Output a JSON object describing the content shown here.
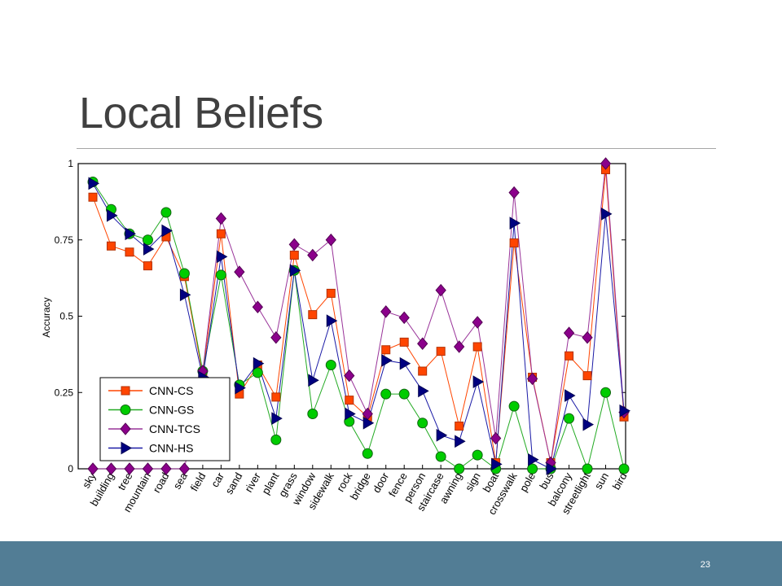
{
  "slide": {
    "title": "Local Beliefs",
    "page_number": "23"
  },
  "chart_data": {
    "type": "line",
    "ylabel": "Accuracy",
    "xlabel": "",
    "ylim": [
      0,
      1
    ],
    "yticks": [
      0,
      0.25,
      0.5,
      0.75,
      1
    ],
    "ytick_labels": [
      "0",
      "0.25",
      "0.5",
      "0.75",
      "1"
    ],
    "legend_position": "bottom-left",
    "grid": false,
    "categories": [
      "sky",
      "building",
      "tree",
      "mountain",
      "road",
      "sea",
      "field",
      "car",
      "sand",
      "river",
      "plant",
      "grass",
      "window",
      "sidewalk",
      "rock",
      "bridge",
      "door",
      "fence",
      "person",
      "staircase",
      "awning",
      "sign",
      "boat",
      "crosswalk",
      "pole",
      "bus",
      "balcony",
      "streetlight",
      "sun",
      "bird"
    ],
    "series": [
      {
        "name": "CNN-CS",
        "color": "#ff4500",
        "fill": "#ff4500",
        "marker": "square",
        "values": [
          0.89,
          0.73,
          0.71,
          0.665,
          0.76,
          0.63,
          0.31,
          0.77,
          0.245,
          0.34,
          0.235,
          0.7,
          0.505,
          0.575,
          0.225,
          0.17,
          0.39,
          0.415,
          0.32,
          0.385,
          0.14,
          0.4,
          0.02,
          0.74,
          0.3,
          0.02,
          0.37,
          0.305,
          0.98,
          0.17
        ]
      },
      {
        "name": "CNN-GS",
        "color": "#22aa22",
        "fill": "#00cc00",
        "marker": "circle",
        "values": [
          0.94,
          0.85,
          0.77,
          0.75,
          0.84,
          0.64,
          0.32,
          0.635,
          0.275,
          0.315,
          0.095,
          0.65,
          0.18,
          0.34,
          0.155,
          0.05,
          0.245,
          0.245,
          0.15,
          0.04,
          0.0,
          0.045,
          0.0,
          0.205,
          0.0,
          0.0,
          0.165,
          0.0,
          0.25,
          0.0
        ]
      },
      {
        "name": "CNN-TCS",
        "color": "#993399",
        "fill": "#8b008b",
        "marker": "diamond",
        "values": [
          0.0,
          0.0,
          0.0,
          0.0,
          0.0,
          0.0,
          0.32,
          0.82,
          0.645,
          0.53,
          0.43,
          0.735,
          0.7,
          0.75,
          0.305,
          0.18,
          0.515,
          0.495,
          0.41,
          0.585,
          0.4,
          0.48,
          0.1,
          0.905,
          0.295,
          0.02,
          0.445,
          0.43,
          1.0,
          0.185
        ]
      },
      {
        "name": "CNN-HS",
        "color": "#1a1aa6",
        "fill": "#000080",
        "marker": "triangle-right",
        "values": [
          0.935,
          0.83,
          0.77,
          0.72,
          0.78,
          0.57,
          0.3,
          0.695,
          0.265,
          0.345,
          0.165,
          0.65,
          0.29,
          0.485,
          0.18,
          0.15,
          0.355,
          0.345,
          0.255,
          0.11,
          0.09,
          0.285,
          0.015,
          0.805,
          0.03,
          0.0,
          0.24,
          0.145,
          0.835,
          0.19
        ]
      }
    ]
  }
}
